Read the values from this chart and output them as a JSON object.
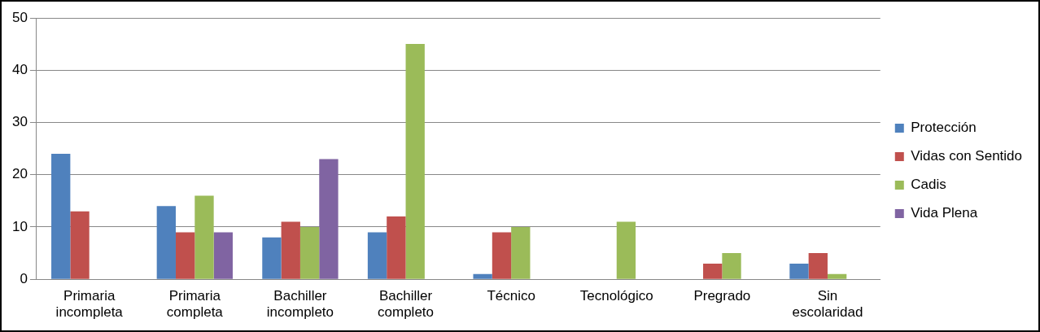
{
  "chart_data": {
    "type": "bar",
    "categories": [
      "Primaria incompleta",
      "Primaria completa",
      "Bachiller incompleto",
      "Bachiller completo",
      "Técnico",
      "Tecnológico",
      "Pregrado",
      "Sin escolaridad"
    ],
    "series": [
      {
        "name": "Protección",
        "color": "#4f81bd",
        "values": [
          24,
          14,
          8,
          9,
          1,
          null,
          null,
          3
        ]
      },
      {
        "name": "Vidas con Sentido",
        "color": "#c0504d",
        "values": [
          13,
          9,
          11,
          12,
          9,
          null,
          3,
          5
        ]
      },
      {
        "name": "Cadis",
        "color": "#9bbb59",
        "values": [
          null,
          16,
          10,
          45,
          10,
          11,
          5,
          1
        ]
      },
      {
        "name": "Vida Plena",
        "color": "#8064a2",
        "values": [
          null,
          9,
          23,
          null,
          null,
          null,
          null,
          null
        ]
      }
    ],
    "ylim": [
      0,
      50
    ],
    "yticks": [
      0,
      10,
      20,
      30,
      40,
      50
    ],
    "grid": "y",
    "legend": "right"
  }
}
